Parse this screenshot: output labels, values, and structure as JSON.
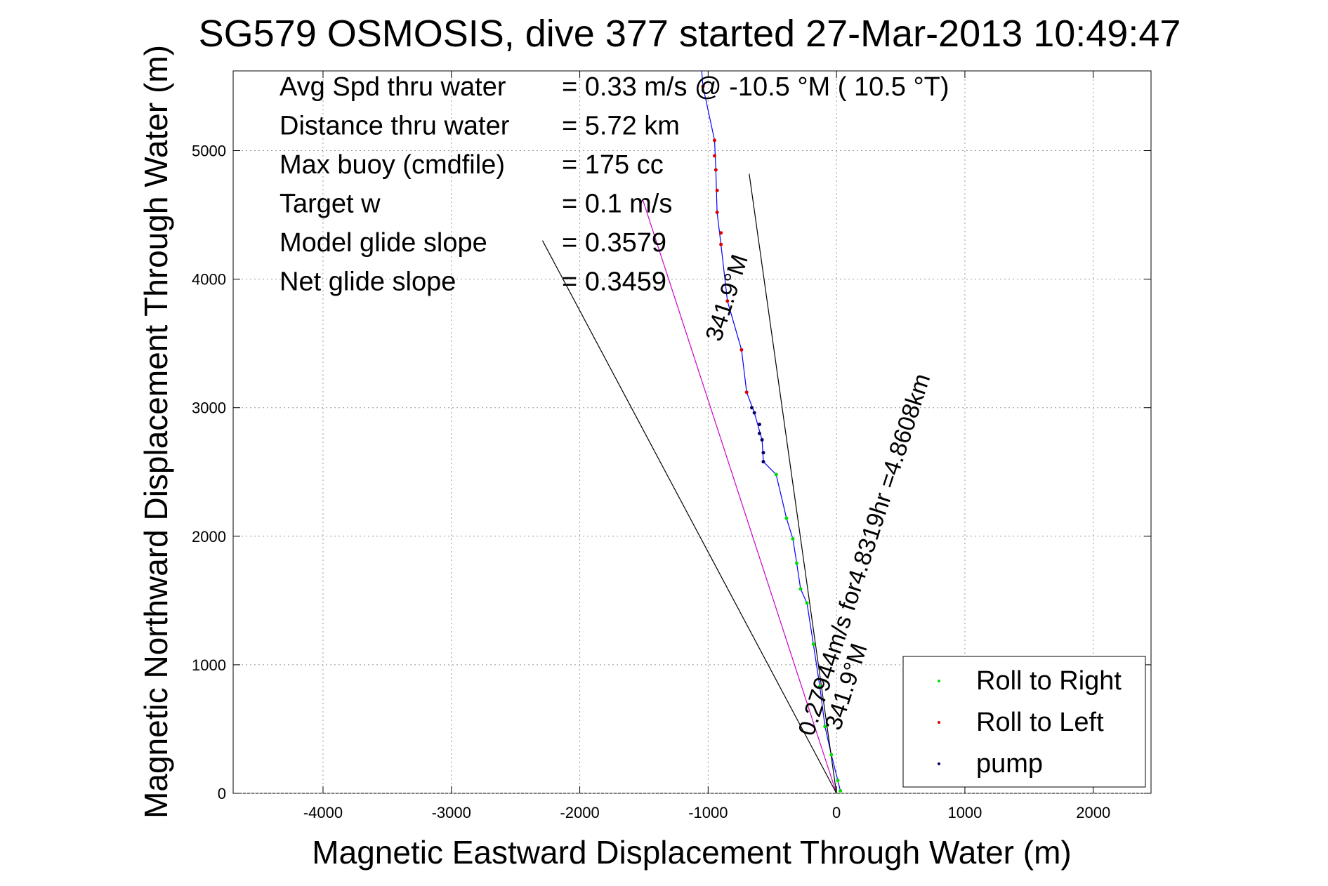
{
  "chart_data": {
    "type": "scatter",
    "title": "SG579 OSMOSIS, dive 377 started 27-Mar-2013 10:49:47",
    "xlabel": "Magnetic Eastward Displacement Through Water (m)",
    "ylabel": "Magnetic Northward Displacement Through Water (m)",
    "xlim": [
      -4700,
      2450
    ],
    "ylim": [
      0,
      5620
    ],
    "x_ticks": [
      -4000,
      -3000,
      -2000,
      -1000,
      0,
      1000,
      2000
    ],
    "y_ticks": [
      0,
      1000,
      2000,
      3000,
      4000,
      5000
    ],
    "grid": true,
    "legend_position": "bottom-right",
    "stats": [
      {
        "label": "Avg Spd thru water",
        "value": "=  0.33 m/s @ -10.5 °M ( 10.5 °T)"
      },
      {
        "label": "Distance thru water",
        "value": "=  5.72 km"
      },
      {
        "label": "Max buoy (cmdfile)",
        "value": "= 175 cc"
      },
      {
        "label": "Target w",
        "value": "= 0.1 m/s"
      },
      {
        "label": "Model glide slope",
        "value": "= 0.3579"
      },
      {
        "label": "Net glide slope",
        "value": "= 0.3459"
      }
    ],
    "annotations": {
      "current_line": "0.27944m/s for4.8319hr =4.8608km",
      "current_heading": "341.9°M",
      "heading_near_origin": "341.9°M"
    },
    "series": [
      {
        "name": "Roll to Right",
        "kind": "points",
        "color": "#00dd00",
        "points": [
          [
            30,
            20
          ],
          [
            10,
            100
          ],
          [
            -40,
            300
          ],
          [
            -90,
            520
          ],
          [
            -130,
            830
          ],
          [
            -180,
            1160
          ],
          [
            -230,
            1480
          ],
          [
            -280,
            1590
          ],
          [
            -310,
            1790
          ],
          [
            -340,
            1980
          ],
          [
            -390,
            2140
          ],
          [
            -470,
            2480
          ]
        ]
      },
      {
        "name": "Roll to Left",
        "kind": "points",
        "color": "#dd0000",
        "points": [
          [
            -1040,
            5500
          ],
          [
            -950,
            5080
          ],
          [
            -950,
            4960
          ],
          [
            -940,
            4850
          ],
          [
            -930,
            4690
          ],
          [
            -930,
            4520
          ],
          [
            -900,
            4360
          ],
          [
            -900,
            4270
          ],
          [
            -850,
            3830
          ],
          [
            -740,
            3450
          ],
          [
            -700,
            3120
          ]
        ]
      },
      {
        "name": "pump",
        "kind": "points",
        "color": "#000066",
        "points": [
          [
            -660,
            3000
          ],
          [
            -640,
            2960
          ],
          [
            -600,
            2870
          ],
          [
            -580,
            2750
          ],
          [
            -570,
            2650
          ],
          [
            -570,
            2580
          ],
          [
            -600,
            2800
          ]
        ]
      },
      {
        "name": "track",
        "kind": "line",
        "color": "#0000ff",
        "points": [
          [
            30,
            20
          ],
          [
            10,
            100
          ],
          [
            -40,
            300
          ],
          [
            -90,
            520
          ],
          [
            -130,
            830
          ],
          [
            -180,
            1160
          ],
          [
            -230,
            1480
          ],
          [
            -280,
            1590
          ],
          [
            -310,
            1790
          ],
          [
            -340,
            1980
          ],
          [
            -390,
            2140
          ],
          [
            -470,
            2480
          ],
          [
            -570,
            2580
          ],
          [
            -580,
            2750
          ],
          [
            -640,
            2960
          ],
          [
            -700,
            3120
          ],
          [
            -740,
            3450
          ],
          [
            -850,
            3830
          ],
          [
            -900,
            4270
          ],
          [
            -930,
            4520
          ],
          [
            -940,
            4850
          ],
          [
            -950,
            5080
          ],
          [
            -1040,
            5500
          ],
          [
            -1050,
            5620
          ]
        ]
      },
      {
        "name": "current",
        "kind": "line",
        "color": "#cc00cc",
        "points": [
          [
            0,
            0
          ],
          [
            -1510,
            4620
          ]
        ]
      },
      {
        "name": "glide-slope-left",
        "kind": "line",
        "color": "#000000",
        "points": [
          [
            0,
            0
          ],
          [
            -2290,
            4300
          ]
        ]
      },
      {
        "name": "glide-slope-right",
        "kind": "line",
        "color": "#000000",
        "points": [
          [
            0,
            0
          ],
          [
            -680,
            4820
          ]
        ]
      }
    ]
  }
}
